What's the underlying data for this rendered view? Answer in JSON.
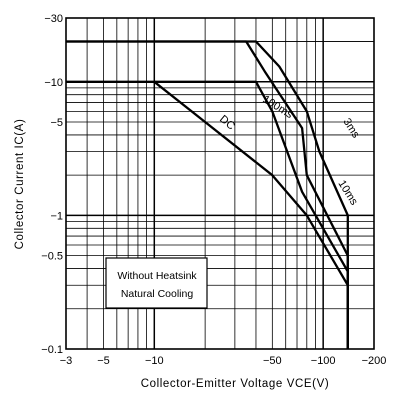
{
  "chart_data": {
    "type": "line",
    "title": "",
    "xlabel": "Collector-Emitter Voltage VCE(V)",
    "ylabel": "Collector Current IC(A)",
    "x_scale": "log",
    "y_scale": "log",
    "xlim": [
      -3,
      -200
    ],
    "ylim": [
      -0.1,
      -30
    ],
    "grid": true,
    "x_ticks": [
      {
        "value": -3,
        "label": "−3"
      },
      {
        "value": -5,
        "label": "−5"
      },
      {
        "value": -10,
        "label": "−10"
      },
      {
        "value": -50,
        "label": "−50"
      },
      {
        "value": -100,
        "label": "−100"
      },
      {
        "value": -200,
        "label": "−200"
      }
    ],
    "y_ticks": [
      {
        "value": -0.1,
        "label": "−0.1"
      },
      {
        "value": -0.5,
        "label": "−0.5"
      },
      {
        "value": -1,
        "label": "−1"
      },
      {
        "value": -5,
        "label": "−5"
      },
      {
        "value": -10,
        "label": "−10"
      },
      {
        "value": -30,
        "label": "−30"
      }
    ],
    "series": [
      {
        "name": "3ms",
        "points": [
          [
            -3,
            -20
          ],
          [
            -40,
            -20
          ],
          [
            -55,
            -13
          ],
          [
            -80,
            -6
          ],
          [
            -95,
            -3
          ],
          [
            -140,
            -1
          ],
          [
            -140,
            -0.1
          ]
        ]
      },
      {
        "name": "10ms",
        "points": [
          [
            -3,
            -20
          ],
          [
            -35,
            -20
          ],
          [
            -45,
            -12
          ],
          [
            -75,
            -4.5
          ],
          [
            -80,
            -2
          ],
          [
            -140,
            -0.5
          ],
          [
            -140,
            -0.1
          ]
        ]
      },
      {
        "name": "100ms",
        "points": [
          [
            -3,
            -10
          ],
          [
            -40,
            -10
          ],
          [
            -50,
            -6
          ],
          [
            -75,
            -1.5
          ],
          [
            -140,
            -0.38
          ],
          [
            -140,
            -0.1
          ]
        ]
      },
      {
        "name": "DC",
        "points": [
          [
            -10,
            -10
          ],
          [
            -20,
            -5
          ],
          [
            -50,
            -2
          ],
          [
            -80,
            -1
          ],
          [
            -140,
            -0.3
          ],
          [
            -140,
            -0.1
          ]
        ]
      }
    ],
    "annotation": [
      "Without Heatsink",
      "Natural Cooling"
    ]
  }
}
